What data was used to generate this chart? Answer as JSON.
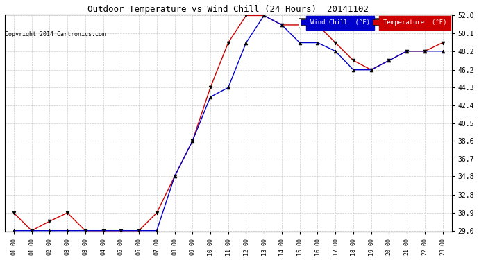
{
  "title": "Outdoor Temperature vs Wind Chill (24 Hours)  20141102",
  "copyright": "Copyright 2014 Cartronics.com",
  "x_labels": [
    "01:00",
    "01:00",
    "02:00",
    "03:00",
    "03:00",
    "04:00",
    "05:00",
    "06:00",
    "07:00",
    "08:00",
    "09:00",
    "10:00",
    "11:00",
    "12:00",
    "13:00",
    "14:00",
    "15:00",
    "16:00",
    "17:00",
    "18:00",
    "19:00",
    "20:00",
    "21:00",
    "22:00",
    "23:00"
  ],
  "temperature": [
    30.9,
    29.0,
    30.0,
    30.9,
    29.0,
    29.0,
    29.0,
    29.0,
    30.9,
    34.8,
    38.6,
    44.3,
    49.1,
    52.0,
    52.0,
    51.0,
    51.0,
    51.0,
    49.1,
    47.2,
    46.2,
    47.2,
    48.2,
    48.2,
    49.1
  ],
  "wind_chill": [
    29.0,
    29.0,
    29.0,
    29.0,
    29.0,
    29.0,
    29.0,
    29.0,
    29.0,
    34.8,
    38.6,
    43.3,
    44.3,
    49.1,
    52.0,
    51.0,
    49.1,
    49.1,
    48.2,
    46.2,
    46.2,
    47.2,
    48.2,
    48.2,
    48.2
  ],
  "temp_color": "#cc0000",
  "wind_color": "#0000cc",
  "ylim_min": 29.0,
  "ylim_max": 52.0,
  "yticks": [
    29.0,
    30.9,
    32.8,
    34.8,
    36.7,
    38.6,
    40.5,
    42.4,
    44.3,
    46.2,
    48.2,
    50.1,
    52.0
  ],
  "bg_color": "#ffffff",
  "grid_color": "#cccccc",
  "legend_wind_bg": "#0000cc",
  "legend_temp_bg": "#cc0000",
  "legend_wind_label": "Wind Chill  (°F)",
  "legend_temp_label": "Temperature  (°F)"
}
